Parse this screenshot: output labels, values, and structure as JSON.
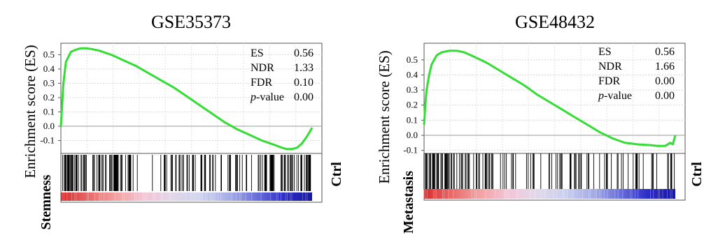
{
  "chart_data": [
    {
      "type": "line",
      "title": "GSE35373",
      "ylabel": "Enrichment score (ES)",
      "yticks": [
        "0.5",
        "0.4",
        "0.3",
        "0.2",
        "0.1",
        "0.0",
        "-0.1"
      ],
      "ylim": [
        -0.19,
        0.58
      ],
      "grid": true,
      "line_color": "#33dd33",
      "series": [
        {
          "x": [
            0,
            0.01,
            0.02,
            0.04,
            0.06,
            0.08,
            0.1,
            0.12,
            0.15,
            0.2,
            0.25,
            0.3,
            0.35,
            0.4,
            0.45,
            0.5,
            0.55,
            0.6,
            0.65,
            0.7,
            0.75,
            0.8,
            0.85,
            0.88,
            0.9,
            0.92,
            0.94,
            0.96,
            0.98,
            1.0
          ],
          "y": [
            0.0,
            0.3,
            0.45,
            0.52,
            0.535,
            0.545,
            0.545,
            0.54,
            0.53,
            0.5,
            0.46,
            0.42,
            0.37,
            0.32,
            0.27,
            0.21,
            0.15,
            0.09,
            0.03,
            -0.02,
            -0.06,
            -0.1,
            -0.13,
            -0.15,
            -0.16,
            -0.16,
            -0.15,
            -0.12,
            -0.07,
            -0.01
          ]
        }
      ],
      "stats": [
        {
          "label": "ES",
          "value": "0.56"
        },
        {
          "label": "NDR",
          "value": "1.33"
        },
        {
          "label": "FDR",
          "value": "0.10"
        },
        {
          "label_italic": "p",
          "label_rest": "-value",
          "value": "0.00"
        }
      ],
      "left_label": "Stemness",
      "right_label": "Ctrl",
      "hit_density": [
        1,
        1,
        0.9,
        1,
        0.8,
        0.9,
        0.9,
        0.7,
        0.8,
        0.6,
        0.7,
        0.5,
        0.6,
        0.6,
        0.7,
        0.5,
        0.4,
        0.5,
        0.6,
        0.4,
        0.5,
        0.5,
        0.4,
        0.5,
        0.6,
        0.5,
        0.7,
        0.8,
        0.9,
        1
      ],
      "ranking_gradient": [
        "#d62c2c",
        "#e86a6a",
        "#f2a3a3",
        "#f3c4d6",
        "#e2d8ea",
        "#ccd0ee",
        "#a8aee6",
        "#6a70d8",
        "#2d2dc8",
        "#1818a0"
      ]
    },
    {
      "type": "line",
      "title": "GSE48432",
      "ylabel": "Enrichment score (ES)",
      "yticks": [
        "0.5",
        "0.4",
        "0.3",
        "0.2",
        "0.1",
        "0.0",
        "-0.1"
      ],
      "ylim": [
        -0.12,
        0.61
      ],
      "grid": true,
      "line_color": "#33dd33",
      "series": [
        {
          "x": [
            0,
            0.005,
            0.01,
            0.02,
            0.03,
            0.05,
            0.07,
            0.1,
            0.13,
            0.16,
            0.2,
            0.25,
            0.3,
            0.35,
            0.4,
            0.45,
            0.5,
            0.55,
            0.6,
            0.65,
            0.7,
            0.75,
            0.8,
            0.85,
            0.9,
            0.93,
            0.96,
            0.98,
            0.99,
            1.0
          ],
          "y": [
            0.07,
            0.2,
            0.3,
            0.4,
            0.47,
            0.53,
            0.55,
            0.56,
            0.56,
            0.55,
            0.52,
            0.48,
            0.43,
            0.38,
            0.33,
            0.27,
            0.22,
            0.17,
            0.12,
            0.07,
            0.02,
            -0.02,
            -0.05,
            -0.06,
            -0.065,
            -0.07,
            -0.07,
            -0.05,
            -0.06,
            0.0
          ]
        }
      ],
      "stats": [
        {
          "label": "ES",
          "value": "0.56"
        },
        {
          "label": "NDR",
          "value": "1.66"
        },
        {
          "label": "FDR",
          "value": "0.00"
        },
        {
          "label_italic": "p",
          "label_rest": "-value",
          "value": "0.00"
        }
      ],
      "left_label": "Metastasis",
      "right_label": "Ctrl",
      "hit_density": [
        1,
        1,
        1,
        0.9,
        1,
        0.9,
        0.8,
        0.8,
        0.7,
        0.7,
        0.6,
        0.6,
        0.5,
        0.6,
        0.5,
        0.5,
        0.4,
        0.5,
        0.4,
        0.4,
        0.5,
        0.4,
        0.5,
        0.5,
        0.4,
        0.6,
        0.5,
        0.6,
        0.5,
        0.6
      ],
      "ranking_gradient": [
        "#d62c2c",
        "#e86a6a",
        "#f2a3a3",
        "#f3c4d6",
        "#e2d8ea",
        "#ccd0ee",
        "#a8aee6",
        "#6a70d8",
        "#2d2dc8",
        "#1818a0"
      ]
    }
  ]
}
